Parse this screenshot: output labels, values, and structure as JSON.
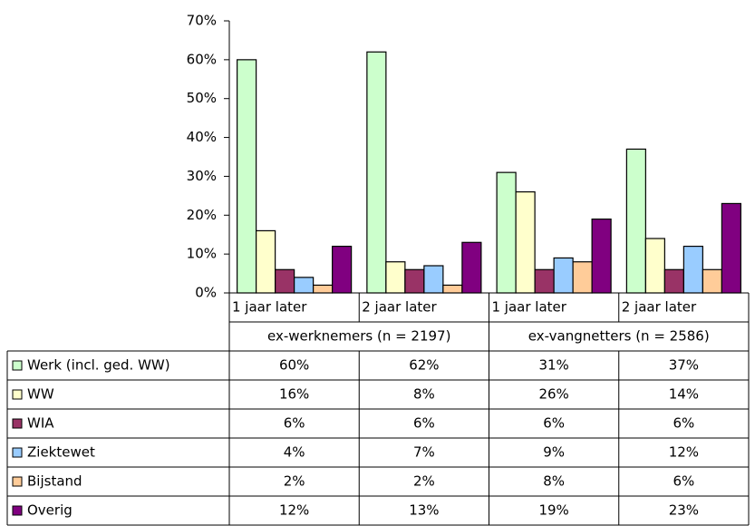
{
  "chart_data": {
    "type": "bar",
    "categories": [
      "1 jaar later",
      "2 jaar later",
      "1 jaar later",
      "2 jaar later"
    ],
    "groups": [
      "ex-werknemers (n = 2197)",
      "ex-vangnetters (n = 2586)"
    ],
    "series": [
      {
        "name": "Werk (incl. ged. WW)",
        "color": "#ccffcc",
        "values": [
          60,
          62,
          31,
          37
        ],
        "value_labels": [
          "60%",
          "62%",
          "31%",
          "37%"
        ]
      },
      {
        "name": "WW",
        "color": "#ffffcc",
        "values": [
          16,
          8,
          26,
          14
        ],
        "value_labels": [
          "16%",
          "8%",
          "26%",
          "14%"
        ]
      },
      {
        "name": "WIA",
        "color": "#993366",
        "values": [
          6,
          6,
          6,
          6
        ],
        "value_labels": [
          "6%",
          "6%",
          "6%",
          "6%"
        ]
      },
      {
        "name": "Ziektewet",
        "color": "#99ccff",
        "values": [
          4,
          7,
          9,
          12
        ],
        "value_labels": [
          "4%",
          "7%",
          "9%",
          "12%"
        ]
      },
      {
        "name": "Bijstand",
        "color": "#ffcc99",
        "values": [
          2,
          2,
          8,
          6
        ],
        "value_labels": [
          "2%",
          "2%",
          "8%",
          "6%"
        ]
      },
      {
        "name": "Overig",
        "color": "#800080",
        "values": [
          12,
          13,
          19,
          23
        ],
        "value_labels": [
          "12%",
          "13%",
          "19%",
          "23%"
        ]
      }
    ],
    "ylim": [
      0,
      70
    ],
    "yticks": [
      {
        "value": 0,
        "label": "0%"
      },
      {
        "value": 10,
        "label": "10%"
      },
      {
        "value": 20,
        "label": "20%"
      },
      {
        "value": 30,
        "label": "30%"
      },
      {
        "value": 40,
        "label": "40%"
      },
      {
        "value": 50,
        "label": "50%"
      },
      {
        "value": 60,
        "label": "60%"
      },
      {
        "value": 70,
        "label": "70%"
      }
    ],
    "grid": false
  }
}
